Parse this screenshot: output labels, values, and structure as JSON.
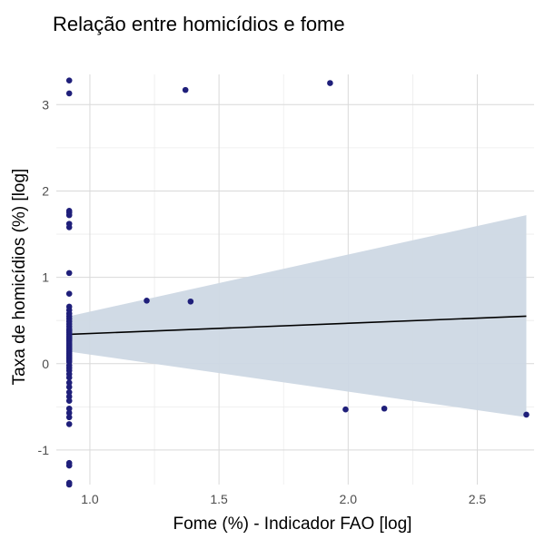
{
  "chart_data": {
    "type": "scatter",
    "title": "Relação entre homicídios e fome",
    "xlabel": "Fome (%) - Indicador FAO [log]",
    "ylabel": "Taxa de homicídios (%) [log]",
    "xlim": [
      0.87,
      2.72
    ],
    "ylim": [
      -1.4,
      3.35
    ],
    "x_ticks": [
      1.0,
      1.5,
      2.0,
      2.5
    ],
    "x_tick_labels": [
      "1.0",
      "1.5",
      "2.0",
      "2.5"
    ],
    "y_ticks": [
      -1,
      0,
      1,
      2,
      3
    ],
    "y_tick_labels": [
      "-1",
      "0",
      "1",
      "2",
      "3"
    ],
    "grid": true,
    "legend": "none",
    "colors": {
      "points": "#1f1f7a",
      "line": "#000000",
      "band": "#ced8e4",
      "grid_major": "#d9d9d9",
      "grid_minor": "#ececec",
      "axis_text": "#4d4d4d"
    },
    "series": [
      {
        "type": "points",
        "x": [
          0.92,
          0.92,
          0.92,
          0.92,
          0.92,
          0.92,
          0.92,
          0.92,
          0.92,
          0.92,
          0.92,
          0.92,
          0.92,
          0.92,
          0.92,
          0.92,
          0.92,
          0.92,
          0.92,
          0.92,
          0.92,
          0.92,
          0.92,
          0.92,
          0.92,
          0.92,
          0.92,
          0.92,
          0.92,
          0.92,
          0.92,
          0.92,
          0.92,
          0.92,
          0.92,
          0.92,
          0.92,
          0.92,
          0.92,
          0.92,
          0.92,
          0.92,
          0.92,
          0.92,
          0.92,
          0.92,
          0.92,
          0.92,
          0.92,
          0.92,
          0.92,
          0.92,
          0.92,
          0.92,
          0.92,
          0.92,
          1.22,
          1.37,
          1.39,
          1.93,
          1.99,
          2.14,
          2.69
        ],
        "y": [
          3.28,
          3.13,
          1.77,
          1.75,
          1.72,
          1.62,
          1.58,
          1.05,
          0.81,
          0.66,
          0.62,
          0.58,
          0.55,
          0.52,
          0.49,
          0.46,
          0.43,
          0.4,
          0.38,
          0.36,
          0.34,
          0.32,
          0.3,
          0.28,
          0.26,
          0.24,
          0.22,
          0.2,
          0.18,
          0.16,
          0.14,
          0.12,
          0.1,
          0.08,
          0.06,
          0.04,
          0.02,
          -0.02,
          -0.05,
          -0.08,
          -0.12,
          -0.16,
          -0.22,
          -0.27,
          -0.33,
          -0.38,
          -0.43,
          -0.52,
          -0.57,
          -0.62,
          -0.7,
          -1.15,
          -1.18,
          -1.38,
          -1.4,
          0.3,
          0.73,
          3.17,
          0.72,
          3.25,
          -0.53,
          -0.52,
          -0.59
        ]
      }
    ],
    "trend_line": {
      "x": [
        0.92,
        2.69
      ],
      "y": [
        0.34,
        0.55
      ]
    },
    "confidence_band": {
      "x": [
        0.92,
        2.69
      ],
      "upper": [
        0.55,
        1.72
      ],
      "lower": [
        0.14,
        -0.62
      ]
    }
  }
}
